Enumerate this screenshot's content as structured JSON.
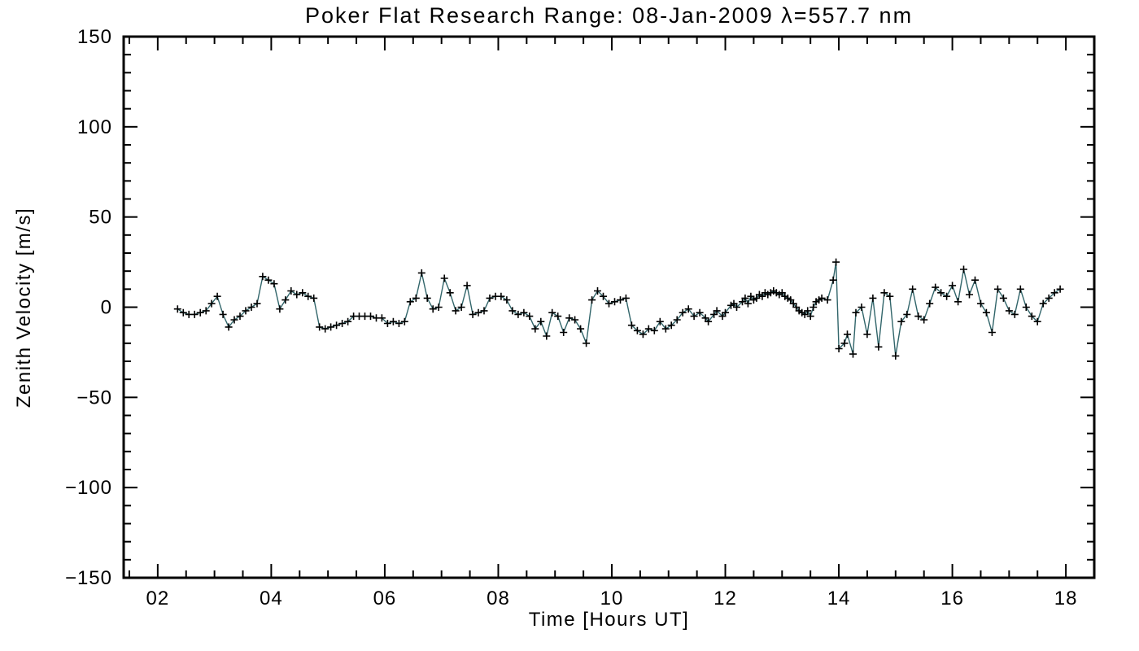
{
  "chart_data": {
    "type": "line",
    "title": "Poker Flat Research Range: 08-Jan-2009 λ=557.7 nm",
    "xlabel": "Time [Hours UT]",
    "ylabel": "Zenith Velocity [m/s]",
    "xlim": [
      1.4,
      18.5
    ],
    "ylim": [
      -150,
      150
    ],
    "grid": false,
    "legend": "none",
    "xticks": {
      "values": [
        2,
        4,
        6,
        8,
        10,
        12,
        14,
        16,
        18
      ],
      "labels": [
        "02",
        "04",
        "06",
        "08",
        "10",
        "12",
        "14",
        "16",
        "18"
      ],
      "minor_step": 0.5
    },
    "yticks": {
      "values": [
        -150,
        -100,
        -50,
        0,
        50,
        100,
        150
      ],
      "labels": [
        "−150",
        "−100",
        "−50",
        "0",
        "50",
        "100",
        "150"
      ],
      "minor_step": 10
    },
    "marker": "plus",
    "line_color": "#31656a",
    "marker_color": "#000000",
    "axis_color": "#000000",
    "background": "#ffffff",
    "points": [
      [
        2.35,
        -1
      ],
      [
        2.45,
        -3
      ],
      [
        2.55,
        -4
      ],
      [
        2.65,
        -4
      ],
      [
        2.75,
        -3
      ],
      [
        2.85,
        -2
      ],
      [
        2.95,
        2
      ],
      [
        3.05,
        6
      ],
      [
        3.15,
        -4
      ],
      [
        3.25,
        -11
      ],
      [
        3.35,
        -7
      ],
      [
        3.45,
        -5
      ],
      [
        3.55,
        -2
      ],
      [
        3.65,
        0
      ],
      [
        3.75,
        2
      ],
      [
        3.85,
        17
      ],
      [
        3.95,
        15
      ],
      [
        4.05,
        13
      ],
      [
        4.15,
        -1
      ],
      [
        4.25,
        4
      ],
      [
        4.35,
        9
      ],
      [
        4.45,
        7
      ],
      [
        4.55,
        8
      ],
      [
        4.65,
        6
      ],
      [
        4.75,
        5
      ],
      [
        4.85,
        -11
      ],
      [
        4.95,
        -12
      ],
      [
        5.05,
        -11
      ],
      [
        5.15,
        -10
      ],
      [
        5.25,
        -9
      ],
      [
        5.35,
        -8
      ],
      [
        5.45,
        -5
      ],
      [
        5.55,
        -5
      ],
      [
        5.65,
        -5
      ],
      [
        5.75,
        -5
      ],
      [
        5.85,
        -6
      ],
      [
        5.95,
        -6
      ],
      [
        6.05,
        -9
      ],
      [
        6.15,
        -8
      ],
      [
        6.25,
        -9
      ],
      [
        6.35,
        -8
      ],
      [
        6.45,
        3
      ],
      [
        6.55,
        5
      ],
      [
        6.65,
        19
      ],
      [
        6.75,
        5
      ],
      [
        6.85,
        -1
      ],
      [
        6.95,
        0
      ],
      [
        7.05,
        16
      ],
      [
        7.15,
        8
      ],
      [
        7.25,
        -2
      ],
      [
        7.35,
        0
      ],
      [
        7.45,
        12
      ],
      [
        7.55,
        -4
      ],
      [
        7.65,
        -3
      ],
      [
        7.75,
        -2
      ],
      [
        7.85,
        5
      ],
      [
        7.95,
        6
      ],
      [
        8.05,
        6
      ],
      [
        8.15,
        4
      ],
      [
        8.25,
        -2
      ],
      [
        8.35,
        -4
      ],
      [
        8.45,
        -3
      ],
      [
        8.55,
        -5
      ],
      [
        8.65,
        -12
      ],
      [
        8.75,
        -8
      ],
      [
        8.85,
        -16
      ],
      [
        8.95,
        -3
      ],
      [
        9.05,
        -5
      ],
      [
        9.15,
        -14
      ],
      [
        9.25,
        -6
      ],
      [
        9.35,
        -7
      ],
      [
        9.45,
        -12
      ],
      [
        9.55,
        -20
      ],
      [
        9.65,
        4
      ],
      [
        9.75,
        9
      ],
      [
        9.85,
        6
      ],
      [
        9.95,
        2
      ],
      [
        10.05,
        3
      ],
      [
        10.15,
        4
      ],
      [
        10.25,
        5
      ],
      [
        10.35,
        -10
      ],
      [
        10.45,
        -13
      ],
      [
        10.55,
        -15
      ],
      [
        10.65,
        -12
      ],
      [
        10.75,
        -13
      ],
      [
        10.85,
        -8
      ],
      [
        10.95,
        -12
      ],
      [
        11.05,
        -10
      ],
      [
        11.15,
        -7
      ],
      [
        11.25,
        -3
      ],
      [
        11.35,
        -1
      ],
      [
        11.45,
        -5
      ],
      [
        11.55,
        -3
      ],
      [
        11.65,
        -6
      ],
      [
        11.7,
        -8
      ],
      [
        11.8,
        -4
      ],
      [
        11.85,
        -2
      ],
      [
        11.95,
        -5
      ],
      [
        12.0,
        -3
      ],
      [
        12.1,
        1
      ],
      [
        12.15,
        2
      ],
      [
        12.2,
        0
      ],
      [
        12.3,
        3
      ],
      [
        12.35,
        5
      ],
      [
        12.4,
        2
      ],
      [
        12.45,
        6
      ],
      [
        12.5,
        4
      ],
      [
        12.55,
        5
      ],
      [
        12.6,
        7
      ],
      [
        12.65,
        6
      ],
      [
        12.7,
        8
      ],
      [
        12.75,
        7
      ],
      [
        12.8,
        8
      ],
      [
        12.85,
        9
      ],
      [
        12.9,
        8
      ],
      [
        12.95,
        7
      ],
      [
        13.0,
        8
      ],
      [
        13.05,
        6
      ],
      [
        13.1,
        5
      ],
      [
        13.15,
        4
      ],
      [
        13.2,
        2
      ],
      [
        13.25,
        0
      ],
      [
        13.3,
        -2
      ],
      [
        13.35,
        -3
      ],
      [
        13.4,
        -4
      ],
      [
        13.45,
        -2
      ],
      [
        13.5,
        -5
      ],
      [
        13.55,
        0
      ],
      [
        13.6,
        3
      ],
      [
        13.65,
        4
      ],
      [
        13.7,
        5
      ],
      [
        13.8,
        4
      ],
      [
        13.9,
        15
      ],
      [
        13.95,
        25
      ],
      [
        14.0,
        -23
      ],
      [
        14.1,
        -20
      ],
      [
        14.15,
        -15
      ],
      [
        14.25,
        -26
      ],
      [
        14.3,
        -3
      ],
      [
        14.4,
        0
      ],
      [
        14.5,
        -15
      ],
      [
        14.6,
        5
      ],
      [
        14.7,
        -22
      ],
      [
        14.8,
        8
      ],
      [
        14.9,
        6
      ],
      [
        15.0,
        -27
      ],
      [
        15.1,
        -8
      ],
      [
        15.2,
        -4
      ],
      [
        15.3,
        10
      ],
      [
        15.4,
        -5
      ],
      [
        15.5,
        -7
      ],
      [
        15.6,
        2
      ],
      [
        15.7,
        11
      ],
      [
        15.8,
        8
      ],
      [
        15.9,
        6
      ],
      [
        16.0,
        12
      ],
      [
        16.1,
        3
      ],
      [
        16.2,
        21
      ],
      [
        16.3,
        7
      ],
      [
        16.4,
        15
      ],
      [
        16.5,
        2
      ],
      [
        16.6,
        -3
      ],
      [
        16.7,
        -14
      ],
      [
        16.8,
        10
      ],
      [
        16.9,
        5
      ],
      [
        17.0,
        -2
      ],
      [
        17.1,
        -4
      ],
      [
        17.2,
        10
      ],
      [
        17.3,
        0
      ],
      [
        17.4,
        -5
      ],
      [
        17.5,
        -8
      ],
      [
        17.6,
        2
      ],
      [
        17.7,
        5
      ],
      [
        17.8,
        8
      ],
      [
        17.9,
        10
      ]
    ]
  }
}
